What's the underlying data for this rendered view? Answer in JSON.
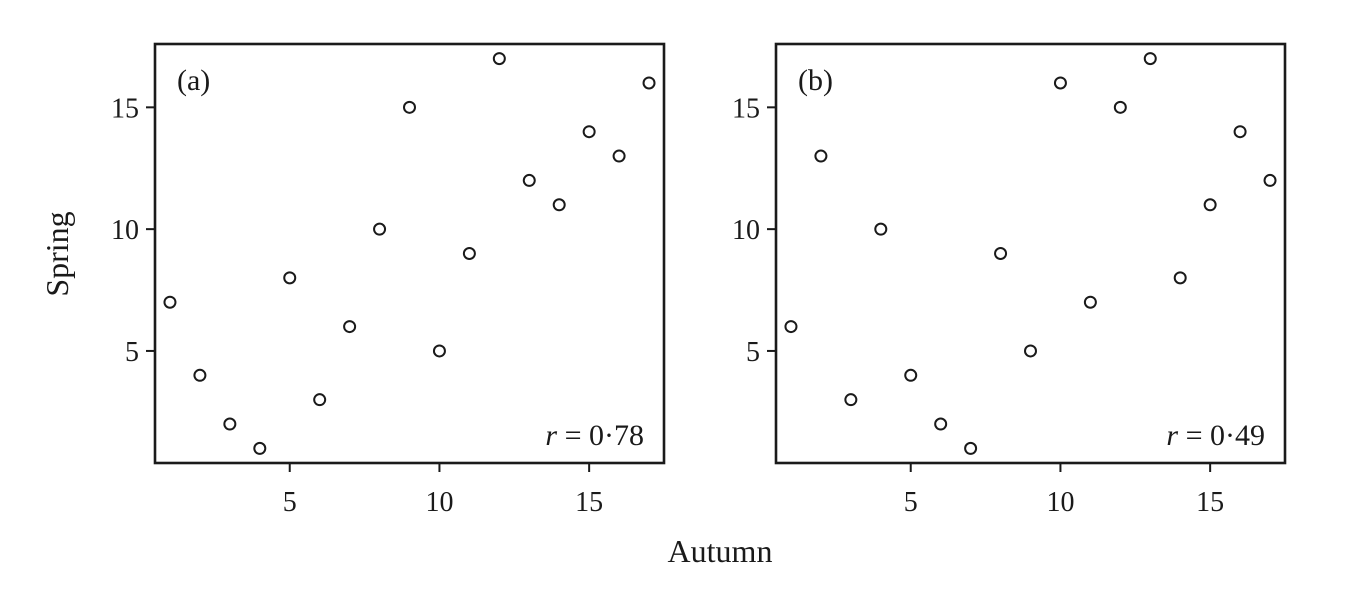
{
  "figure": {
    "xlabel": "Autumn",
    "ylabel": "Spring"
  },
  "chart_data": [
    {
      "type": "scatter",
      "panel_label": "(a)",
      "annotation_symbol": "r",
      "annotation_value": "= 0·78",
      "xlim": [
        0.5,
        17.5
      ],
      "ylim": [
        0.4,
        17.6
      ],
      "xticks": [
        5,
        10,
        15
      ],
      "yticks": [
        5,
        10,
        15
      ],
      "x": [
        1,
        2,
        3,
        4,
        5,
        6,
        7,
        8,
        9,
        10,
        11,
        12,
        13,
        14,
        15,
        16,
        17
      ],
      "y": [
        7,
        4,
        2,
        1,
        8,
        3,
        6,
        10,
        15,
        5,
        9,
        17,
        12,
        11,
        14,
        13,
        16
      ]
    },
    {
      "type": "scatter",
      "panel_label": "(b)",
      "annotation_symbol": "r",
      "annotation_value": "= 0·49",
      "xlim": [
        0.5,
        17.5
      ],
      "ylim": [
        0.4,
        17.6
      ],
      "xticks": [
        5,
        10,
        15
      ],
      "yticks": [
        5,
        10,
        15
      ],
      "x": [
        1,
        2,
        3,
        4,
        5,
        6,
        7,
        8,
        9,
        10,
        11,
        12,
        13,
        14,
        15,
        16,
        17
      ],
      "y": [
        6,
        13,
        3,
        10,
        4,
        2,
        1,
        9,
        5,
        16,
        7,
        15,
        17,
        8,
        11,
        14,
        12
      ]
    }
  ]
}
